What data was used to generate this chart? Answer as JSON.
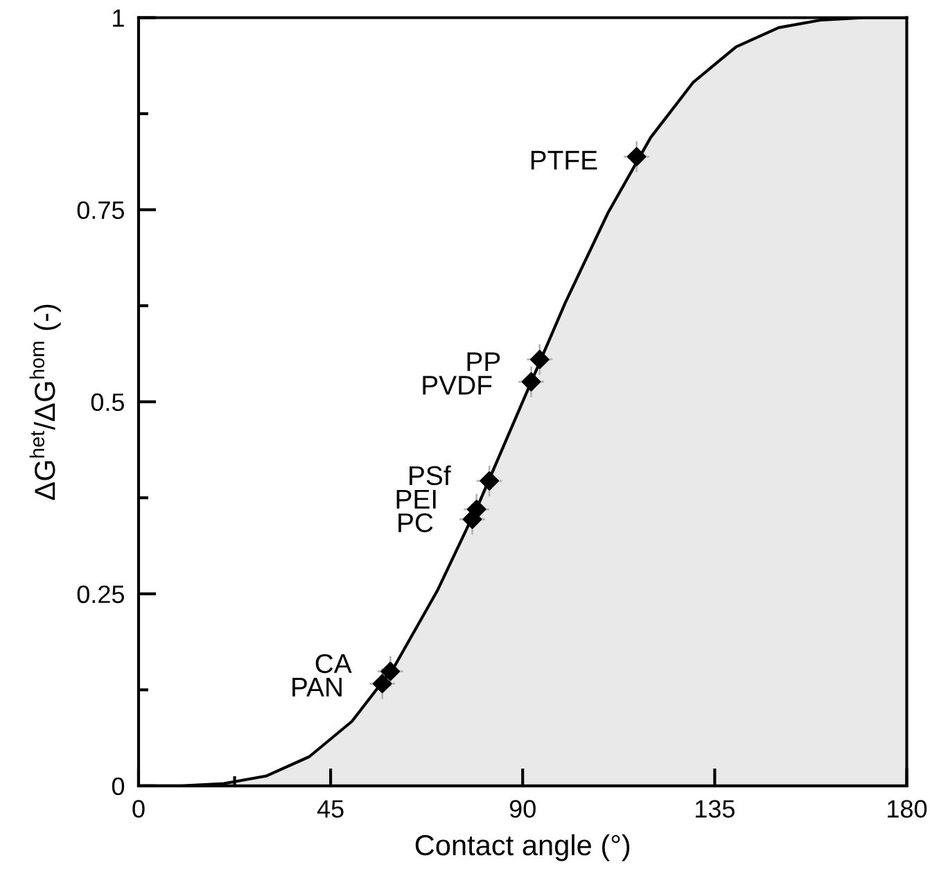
{
  "chart_data": {
    "type": "area",
    "xlabel": "Contact angle (°)",
    "ylabel": "ΔG$^{het}$/ΔG$^{hom}$ (-)",
    "xlim": [
      0,
      180
    ],
    "ylim": [
      0,
      1
    ],
    "xticks": [
      0,
      {
        "value": 22.5,
        "label": null
      },
      45,
      90,
      135,
      180
    ],
    "yticks": [
      0,
      {
        "value": 0.125,
        "label": null
      },
      0.25,
      {
        "value": 0.375,
        "label": null
      },
      0.5,
      {
        "value": 0.625,
        "label": null
      },
      0.75,
      {
        "value": 0.875,
        "label": null
      },
      1
    ],
    "grid": false,
    "series": [
      {
        "color": "#e9e9e9",
        "x": [
          0,
          10,
          20,
          30,
          40,
          50,
          60,
          70,
          80,
          90,
          100,
          110,
          120,
          130,
          140,
          150,
          160,
          170,
          180
        ],
        "values": [
          0,
          0,
          0.003,
          0.013,
          0.038,
          0.084,
          0.156,
          0.254,
          0.371,
          0.5,
          0.629,
          0.746,
          0.844,
          0.916,
          0.962,
          0.987,
          0.997,
          1,
          1
        ]
      },
      {
        "type": "scatter",
        "color": "#000000",
        "marker": "diamond",
        "x": [
          57.1,
          59.0,
          78.2,
          79.2,
          82.2,
          92.0,
          94.0,
          116.7
        ],
        "values": [
          0.133,
          0.149,
          0.347,
          0.36,
          0.397,
          0.526,
          0.555,
          0.819
        ],
        "errors": [
          0.02,
          0.02,
          0.02,
          0.02,
          0.02,
          0.02,
          0.02,
          0.02
        ],
        "xerrors": [
          3,
          3,
          3,
          3,
          3,
          3,
          3,
          3
        ]
      }
    ],
    "annotations": [
      {
        "text": "PAN",
        "x": 57.1,
        "y": 0.133
      },
      {
        "text": "CA",
        "x": 59.0,
        "y": 0.149
      },
      {
        "text": "PC",
        "x": 78.2,
        "y": 0.347
      },
      {
        "text": "PEI",
        "x": 79.2,
        "y": 0.36
      },
      {
        "text": "PSf",
        "x": 82.2,
        "y": 0.397
      },
      {
        "text": "PVDF",
        "x": 92.0,
        "y": 0.526
      },
      {
        "text": "PP",
        "x": 94.0,
        "y": 0.555
      },
      {
        "text": "PTFE",
        "x": 116.7,
        "y": 0.819
      }
    ]
  }
}
